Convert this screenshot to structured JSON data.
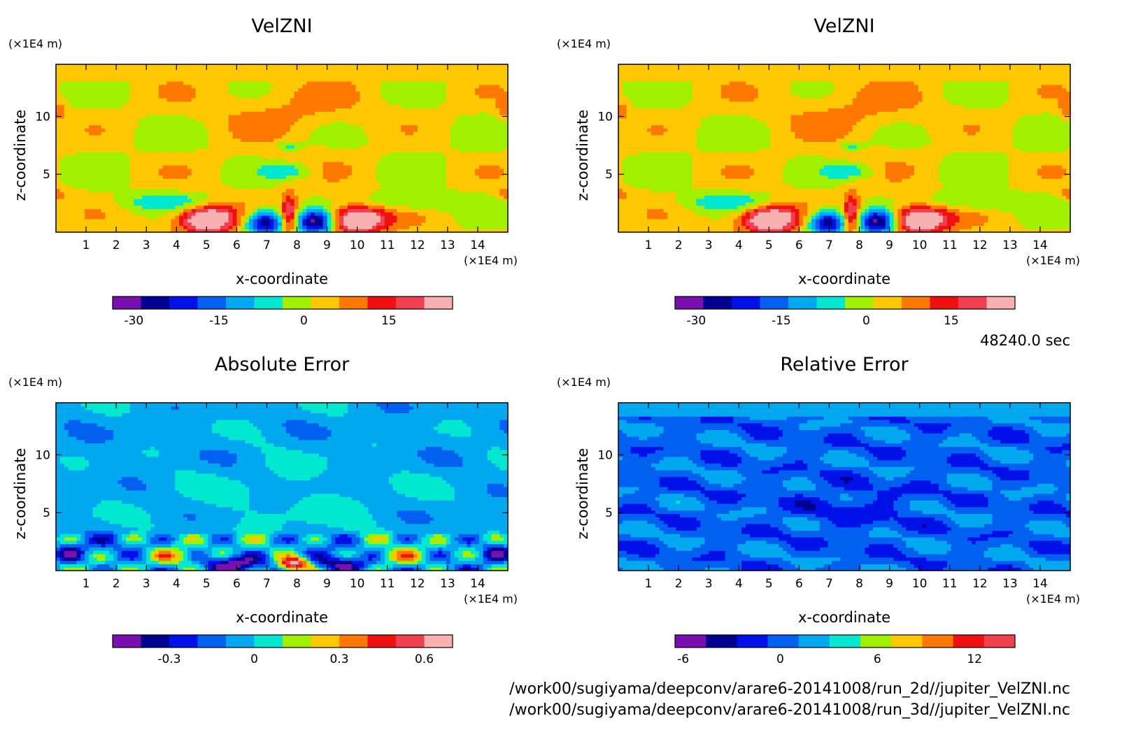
{
  "time_label": "48240.0 sec",
  "footer_lines": [
    "/work00/sugiyama/deepconv/arare6-20141008/run_2d//jupiter_VelZNI.nc",
    "/work00/sugiyama/deepconv/arare6-20141008/run_3d//jupiter_VelZNI.nc"
  ],
  "chart_data": [
    {
      "type": "heatmap",
      "title": "VelZNI",
      "xlabel": "x-coordinate",
      "ylabel": "z-coordinate",
      "x_unit": "(×1E4 m)",
      "y_unit": "(×1E4 m)",
      "xlim": [
        0,
        15
      ],
      "ylim": [
        0,
        14.5
      ],
      "x_ticks": [
        "1",
        "2",
        "3",
        "4",
        "5",
        "6",
        "7",
        "8",
        "9",
        "10",
        "11",
        "12",
        "13",
        "14"
      ],
      "y_ticks": [
        "5",
        "10"
      ],
      "colorbar": {
        "levels": 11,
        "colors": [
          "#7a0fb0",
          "#000090",
          "#0010e8",
          "#0060f0",
          "#00a8f0",
          "#00e8d0",
          "#a0f000",
          "#ffc800",
          "#ff7800",
          "#f01010",
          "#f04050",
          "#f8b0b0"
        ],
        "tick_labels": [
          "-30",
          "-15",
          "0",
          "15"
        ],
        "tick_values": [
          -30,
          -15,
          0,
          15
        ],
        "vmin": -33.75,
        "vmax": 26.25
      },
      "field": "velzni"
    },
    {
      "type": "heatmap",
      "title": "VelZNI",
      "xlabel": "x-coordinate",
      "ylabel": "z-coordinate",
      "x_unit": "(×1E4 m)",
      "y_unit": "(×1E4 m)",
      "xlim": [
        0,
        15
      ],
      "ylim": [
        0,
        14.5
      ],
      "x_ticks": [
        "1",
        "2",
        "3",
        "4",
        "5",
        "6",
        "7",
        "8",
        "9",
        "10",
        "11",
        "12",
        "13",
        "14"
      ],
      "y_ticks": [
        "5",
        "10"
      ],
      "colorbar": {
        "levels": 11,
        "colors": [
          "#7a0fb0",
          "#000090",
          "#0010e8",
          "#0060f0",
          "#00a8f0",
          "#00e8d0",
          "#a0f000",
          "#ffc800",
          "#ff7800",
          "#f01010",
          "#f04050",
          "#f8b0b0"
        ],
        "tick_labels": [
          "-30",
          "-15",
          "0",
          "15"
        ],
        "tick_values": [
          -30,
          -15,
          0,
          15
        ],
        "vmin": -33.75,
        "vmax": 26.25
      },
      "field": "velzni"
    },
    {
      "type": "heatmap",
      "title": "Absolute Error",
      "xlabel": "x-coordinate",
      "ylabel": "z-coordinate",
      "x_unit": "(×1E4 m)",
      "y_unit": "(×1E4 m)",
      "xlim": [
        0,
        15
      ],
      "ylim": [
        0,
        14.5
      ],
      "x_ticks": [
        "1",
        "2",
        "3",
        "4",
        "5",
        "6",
        "7",
        "8",
        "9",
        "10",
        "11",
        "12",
        "13",
        "14"
      ],
      "y_ticks": [
        "5",
        "10"
      ],
      "colorbar": {
        "levels": 12,
        "colors": [
          "#7a0fb0",
          "#000090",
          "#0010e8",
          "#0060f0",
          "#00a8f0",
          "#00e8d0",
          "#a0f000",
          "#ffc800",
          "#ff7800",
          "#f01010",
          "#f04050",
          "#f8b0b0"
        ],
        "tick_labels": [
          "-0.3",
          "0",
          "0.3",
          "0.6"
        ],
        "tick_values": [
          -0.3,
          0,
          0.3,
          0.6
        ],
        "vmin": -0.5,
        "vmax": 0.7
      },
      "field": "abserr"
    },
    {
      "type": "heatmap",
      "title": "Relative Error",
      "xlabel": "x-coordinate",
      "ylabel": "z-coordinate",
      "x_unit": "(×1E4 m)",
      "y_unit": "(×1E4 m)",
      "xlim": [
        0,
        15
      ],
      "ylim": [
        0,
        14.5
      ],
      "x_ticks": [
        "1",
        "2",
        "3",
        "4",
        "5",
        "6",
        "7",
        "8",
        "9",
        "10",
        "11",
        "12",
        "13",
        "14"
      ],
      "y_ticks": [
        "5",
        "10"
      ],
      "colorbar": {
        "levels": 11,
        "colors": [
          "#7a0fb0",
          "#000090",
          "#0010e8",
          "#0060f0",
          "#00a8f0",
          "#00e8d0",
          "#a0f000",
          "#ffc800",
          "#ff7800",
          "#f01010",
          "#f04050"
        ],
        "tick_labels": [
          "-6",
          "0",
          "6",
          "12"
        ],
        "tick_values": [
          -6,
          0,
          6,
          12
        ],
        "vmin": -6.5,
        "vmax": 14.5
      },
      "field": "relerr"
    }
  ]
}
